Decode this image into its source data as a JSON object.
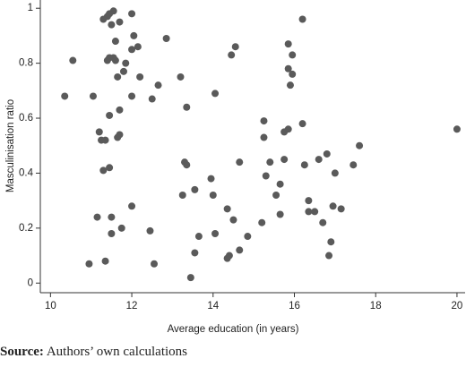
{
  "chart_data": {
    "type": "scatter",
    "x_label": "Average education (in years)",
    "y_label": "Masculinisation ratio",
    "color": "#5a5a5a",
    "x": [
      10.35,
      10.55,
      11.05,
      10.95,
      11.15,
      11.2,
      11.25,
      11.3,
      11.3,
      11.35,
      11.35,
      11.4,
      11.4,
      11.45,
      11.45,
      11.45,
      11.45,
      11.5,
      11.5,
      11.5,
      11.55,
      11.55,
      11.6,
      11.6,
      11.65,
      11.65,
      11.7,
      11.7,
      11.7,
      11.75,
      11.8,
      11.85,
      12.0,
      12.0,
      12.0,
      12.05,
      12.0,
      12.15,
      12.2,
      12.45,
      12.5,
      12.55,
      12.65,
      12.85,
      13.2,
      13.25,
      13.3,
      13.35,
      13.35,
      13.45,
      13.55,
      13.55,
      13.65,
      13.95,
      14.0,
      14.05,
      14.05,
      14.35,
      14.35,
      14.4,
      14.45,
      14.5,
      14.55,
      14.65,
      14.65,
      14.85,
      15.2,
      15.25,
      15.25,
      15.3,
      15.4,
      15.55,
      15.65,
      15.65,
      15.75,
      15.75,
      15.85,
      15.85,
      15.85,
      15.9,
      15.95,
      15.95,
      16.2,
      16.2,
      16.25,
      16.35,
      16.35,
      16.5,
      16.6,
      16.7,
      16.8,
      16.85,
      16.9,
      16.95,
      17.0,
      17.15,
      17.45,
      17.6,
      20.0
    ],
    "values": [
      0.68,
      0.81,
      0.68,
      0.07,
      0.24,
      0.55,
      0.52,
      0.41,
      0.96,
      0.52,
      0.08,
      0.97,
      0.81,
      0.98,
      0.42,
      0.61,
      0.82,
      0.94,
      0.18,
      0.24,
      0.99,
      0.82,
      0.88,
      0.81,
      0.75,
      0.53,
      0.95,
      0.54,
      0.63,
      0.2,
      0.77,
      0.8,
      0.85,
      0.98,
      0.68,
      0.9,
      0.28,
      0.86,
      0.75,
      0.19,
      0.67,
      0.07,
      0.72,
      0.89,
      0.75,
      0.32,
      0.44,
      0.43,
      0.64,
      0.02,
      0.34,
      0.11,
      0.17,
      0.38,
      0.32,
      0.18,
      0.69,
      0.27,
      0.09,
      0.1,
      0.83,
      0.23,
      0.86,
      0.12,
      0.44,
      0.17,
      0.22,
      0.59,
      0.53,
      0.39,
      0.44,
      0.32,
      0.25,
      0.36,
      0.45,
      0.55,
      0.78,
      0.56,
      0.87,
      0.72,
      0.83,
      0.76,
      0.96,
      0.58,
      0.43,
      0.3,
      0.26,
      0.26,
      0.45,
      0.22,
      0.47,
      0.1,
      0.15,
      0.28,
      0.4,
      0.27,
      0.43,
      0.5,
      0.56
    ],
    "xlim": [
      9.75,
      20.2
    ],
    "xticks": [
      10,
      12,
      14,
      16,
      18,
      20
    ],
    "ylim": [
      -0.035,
      1.03
    ],
    "yticks": [
      0,
      0.2,
      0.4,
      0.6,
      0.8,
      1
    ]
  },
  "source": {
    "label": "Source:",
    "text": "Authors’ own calculations"
  }
}
